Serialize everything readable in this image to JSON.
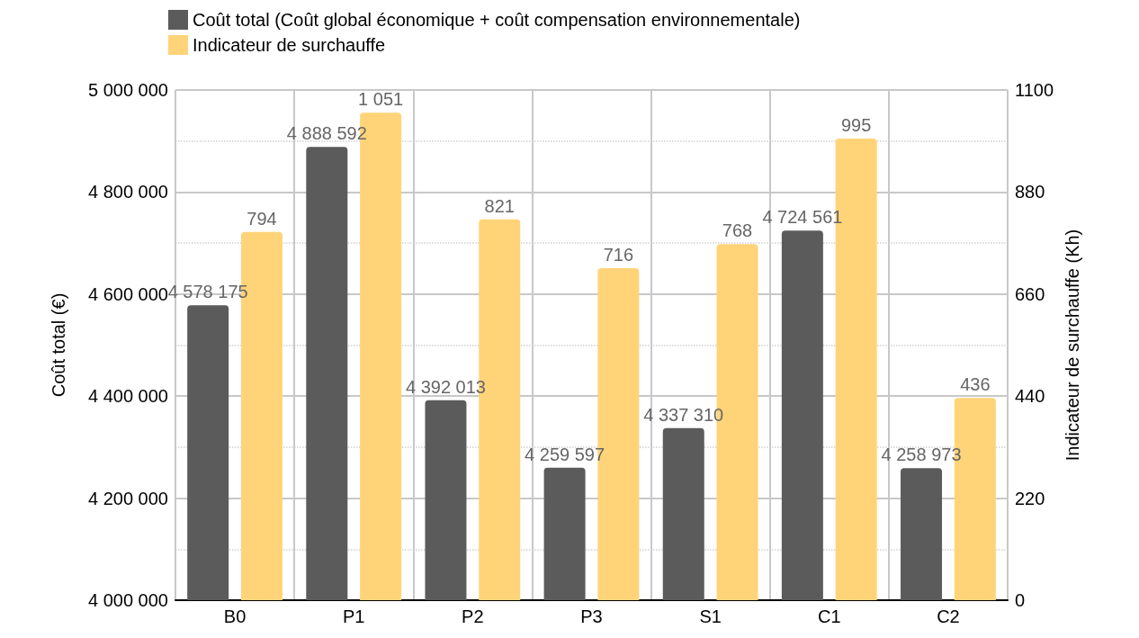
{
  "chart_data": {
    "type": "bar",
    "categories": [
      "B0",
      "P1",
      "P2",
      "P3",
      "S1",
      "C1",
      "C2"
    ],
    "ylabel": "Coût total (€)",
    "y2label": "Indicateur de surchauffe (Kh)",
    "series": [
      {
        "name": "Coût total (Coût global économique + coût compensation environnementale)",
        "color": "#5b5b5b",
        "values": [
          4578175,
          4888592,
          4392013,
          4259597,
          4337310,
          4724561,
          4258973
        ],
        "value_labels": [
          "4 578 175",
          "4 888 592",
          "4 392 013",
          "4 259 597",
          "4 337 310",
          "4 724 561",
          "4 258 973"
        ]
      },
      {
        "name": "Indicateur de surchauffe",
        "color": "#ffd479",
        "axis": "y2",
        "values": [
          794,
          1051,
          821,
          716,
          768,
          995,
          436
        ],
        "value_labels": [
          "794",
          "1 051",
          "821",
          "716",
          "768",
          "995",
          "436"
        ]
      }
    ],
    "ylim": [
      4000000,
      5000000
    ],
    "yticks": [
      {
        "value": 4000000,
        "label": "4 000 000"
      },
      {
        "value": 4200000,
        "label": "4 200 000"
      },
      {
        "value": 4400000,
        "label": "4 400 000"
      },
      {
        "value": 4600000,
        "label": "4 600 000"
      },
      {
        "value": 4800000,
        "label": "4 800 000"
      },
      {
        "value": 5000000,
        "label": "5 000 000"
      }
    ],
    "y2lim": [
      0,
      1100
    ],
    "y2ticks": [
      0,
      220,
      440,
      660,
      880,
      1100
    ],
    "grid": true,
    "legend": "top left"
  }
}
